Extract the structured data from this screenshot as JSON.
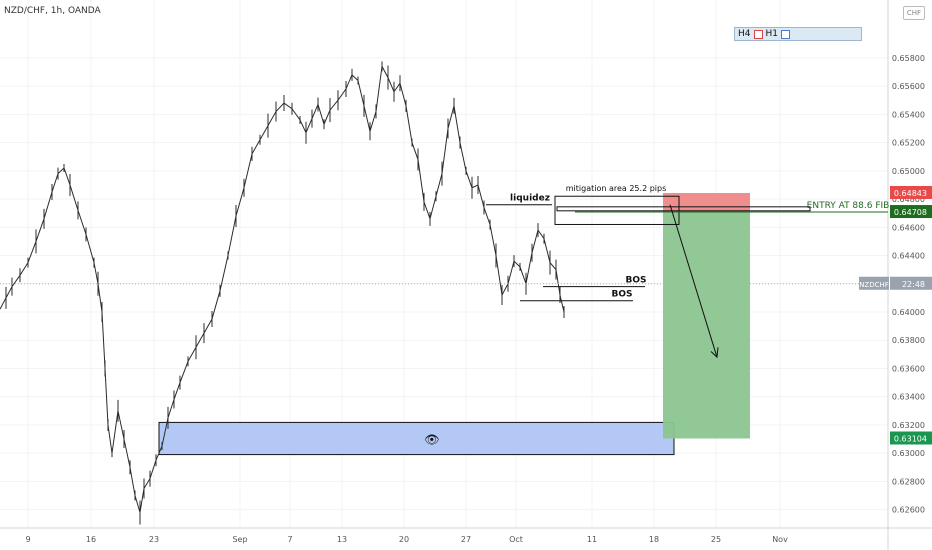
{
  "header": {
    "symbol": "NZD/CHF, 1h, OANDA",
    "currency_badge": "CHF"
  },
  "timeframes": {
    "h4": "H4",
    "h1": "H1"
  },
  "colors": {
    "stop_zone": "#f08d8d",
    "target_zone": "#8cc58f",
    "demand_zone": "#b3c8f5",
    "entry_text": "#1f6b1f",
    "entry_badge": "#1f6b1f",
    "stop_badge": "#e84a4a",
    "target_badge": "#1a9650"
  },
  "chart_data": {
    "type": "line",
    "title": "",
    "xlabel": "",
    "ylabel": "",
    "ylim": [
      0.6247,
      0.6621
    ],
    "x_ticks": [
      "9",
      "16",
      "23",
      "Sep",
      "7",
      "13",
      "20",
      "27",
      "Oct",
      "11",
      "18",
      "25",
      "Nov"
    ],
    "y_ticks": [
      "0.65800",
      "0.65600",
      "0.65400",
      "0.65200",
      "0.65000",
      "0.64800",
      "0.64600",
      "0.64400",
      "0.64200",
      "0.64000",
      "0.63800",
      "0.63600",
      "0.63400",
      "0.63200",
      "0.63000",
      "0.62800",
      "0.62600"
    ],
    "series": [
      {
        "name": "",
        "points": [
          [
            0,
            0.6402
          ],
          [
            6,
            0.641
          ],
          [
            12,
            0.6418
          ],
          [
            20,
            0.6426
          ],
          [
            28,
            0.6435
          ],
          [
            36,
            0.645
          ],
          [
            44,
            0.6466
          ],
          [
            52,
            0.6485
          ],
          [
            58,
            0.6498
          ],
          [
            64,
            0.6502
          ],
          [
            70,
            0.649
          ],
          [
            78,
            0.6472
          ],
          [
            86,
            0.6455
          ],
          [
            94,
            0.6435
          ],
          [
            98,
            0.642
          ],
          [
            102,
            0.64
          ],
          [
            105,
            0.636
          ],
          [
            108,
            0.632
          ],
          [
            112,
            0.63
          ],
          [
            118,
            0.633
          ],
          [
            124,
            0.631
          ],
          [
            130,
            0.629
          ],
          [
            135,
            0.627
          ],
          [
            140,
            0.6258
          ],
          [
            144,
            0.6275
          ],
          [
            150,
            0.6282
          ],
          [
            156,
            0.6295
          ],
          [
            162,
            0.6305
          ],
          [
            168,
            0.6325
          ],
          [
            174,
            0.6338
          ],
          [
            180,
            0.635
          ],
          [
            188,
            0.6365
          ],
          [
            196,
            0.6375
          ],
          [
            204,
            0.6385
          ],
          [
            212,
            0.6395
          ],
          [
            220,
            0.6415
          ],
          [
            228,
            0.644
          ],
          [
            236,
            0.6468
          ],
          [
            244,
            0.6488
          ],
          [
            252,
            0.6512
          ],
          [
            260,
            0.6522
          ],
          [
            268,
            0.6532
          ],
          [
            276,
            0.6542
          ],
          [
            284,
            0.6548
          ],
          [
            292,
            0.6544
          ],
          [
            300,
            0.6536
          ],
          [
            306,
            0.6527
          ],
          [
            312,
            0.6537
          ],
          [
            318,
            0.6547
          ],
          [
            324,
            0.6533
          ],
          [
            330,
            0.6543
          ],
          [
            338,
            0.655
          ],
          [
            346,
            0.6558
          ],
          [
            352,
            0.6568
          ],
          [
            358,
            0.6564
          ],
          [
            364,
            0.6546
          ],
          [
            370,
            0.6528
          ],
          [
            376,
            0.6542
          ],
          [
            382,
            0.6574
          ],
          [
            388,
            0.6566
          ],
          [
            394,
            0.6556
          ],
          [
            400,
            0.6562
          ],
          [
            406,
            0.6546
          ],
          [
            412,
            0.652
          ],
          [
            418,
            0.6508
          ],
          [
            424,
            0.6478
          ],
          [
            430,
            0.6466
          ],
          [
            436,
            0.6482
          ],
          [
            442,
            0.6498
          ],
          [
            448,
            0.653
          ],
          [
            454,
            0.6546
          ],
          [
            460,
            0.652
          ],
          [
            466,
            0.65
          ],
          [
            472,
            0.6488
          ],
          [
            478,
            0.649
          ],
          [
            484,
            0.6474
          ],
          [
            490,
            0.6462
          ],
          [
            496,
            0.644
          ],
          [
            502,
            0.6412
          ],
          [
            508,
            0.642
          ],
          [
            514,
            0.6436
          ],
          [
            520,
            0.6432
          ],
          [
            526,
            0.642
          ],
          [
            532,
            0.6442
          ],
          [
            538,
            0.6458
          ],
          [
            544,
            0.6452
          ],
          [
            550,
            0.6435
          ],
          [
            556,
            0.643
          ],
          [
            560,
            0.6412
          ],
          [
            564,
            0.64
          ]
        ]
      }
    ],
    "annotations": {
      "demand_zone": {
        "y_top": 0.63218,
        "y_bottom": 0.6299
      },
      "stop_zone": {
        "y_top": 0.64843,
        "y_bottom": 0.64708
      },
      "target_zone": {
        "y_top": 0.64708,
        "y_bottom": 0.63104
      },
      "mitigation_box": {
        "y_top": 0.6482,
        "y_bottom": 0.6462
      },
      "liquidity_line": {
        "y": 0.6476
      },
      "bos_lines": [
        {
          "y": 0.6418,
          "label": "BOS"
        },
        {
          "y": 0.6408,
          "label": "BOS"
        }
      ],
      "entry_line": {
        "y": 0.64708
      },
      "last_price": 0.642
    },
    "labels": {
      "mitigation": "mitigation area 25.2 pips",
      "liquidity": "liquidez",
      "entry": "ENTRY AT 88.6 FIB",
      "price_tag_symbol": "NZDCHF",
      "price_tag_time": "22:48",
      "badge_stop": "0.64843",
      "badge_entry": "0.64708",
      "badge_target": "0.63104",
      "eye_icon": "👁"
    }
  }
}
